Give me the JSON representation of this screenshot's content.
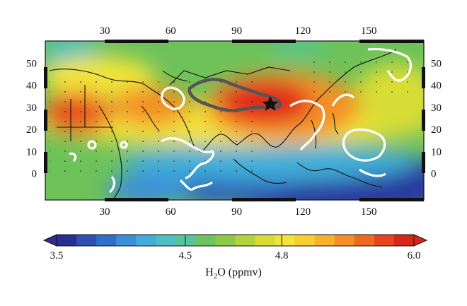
{
  "map": {
    "type": "contour-map",
    "region": "Asia / North Africa / Western Pacific",
    "lon_ticks": [
      30,
      60,
      90,
      120,
      150
    ],
    "lat_ticks": [
      0,
      10,
      20,
      30,
      40,
      50
    ],
    "lon_range": [
      3,
      175
    ],
    "lat_range": [
      -12,
      60
    ],
    "star_marker": {
      "lon": 108,
      "lat": 33
    },
    "colors": {
      "low": "#2b3a9e",
      "mid_low": "#3aa7d6",
      "mid": "#6ec25a",
      "mid_high": "#f2e33c",
      "high": "#e0271d",
      "tibet_outline": "#555555",
      "contour": "#ffffff"
    }
  },
  "colorbar": {
    "ticks": [
      "3.5",
      "4.5",
      "4.8",
      "6.0"
    ],
    "tick_values": [
      3.5,
      4.5,
      4.8,
      6.0
    ],
    "range": [
      3.5,
      6.0
    ],
    "title_main": "H",
    "title_sub": "2",
    "title_rest": "O (ppmv)",
    "colors": [
      "#2a2f8f",
      "#2f4fb2",
      "#2f6fc9",
      "#3a8fd8",
      "#41add8",
      "#4bbfc3",
      "#55c49a",
      "#6cc561",
      "#8dcb45",
      "#b3d33b",
      "#d8dd36",
      "#f1e43a",
      "#f8cf33",
      "#f8b12c",
      "#f49027",
      "#ee6a22",
      "#e5441e",
      "#d6261a"
    ]
  }
}
